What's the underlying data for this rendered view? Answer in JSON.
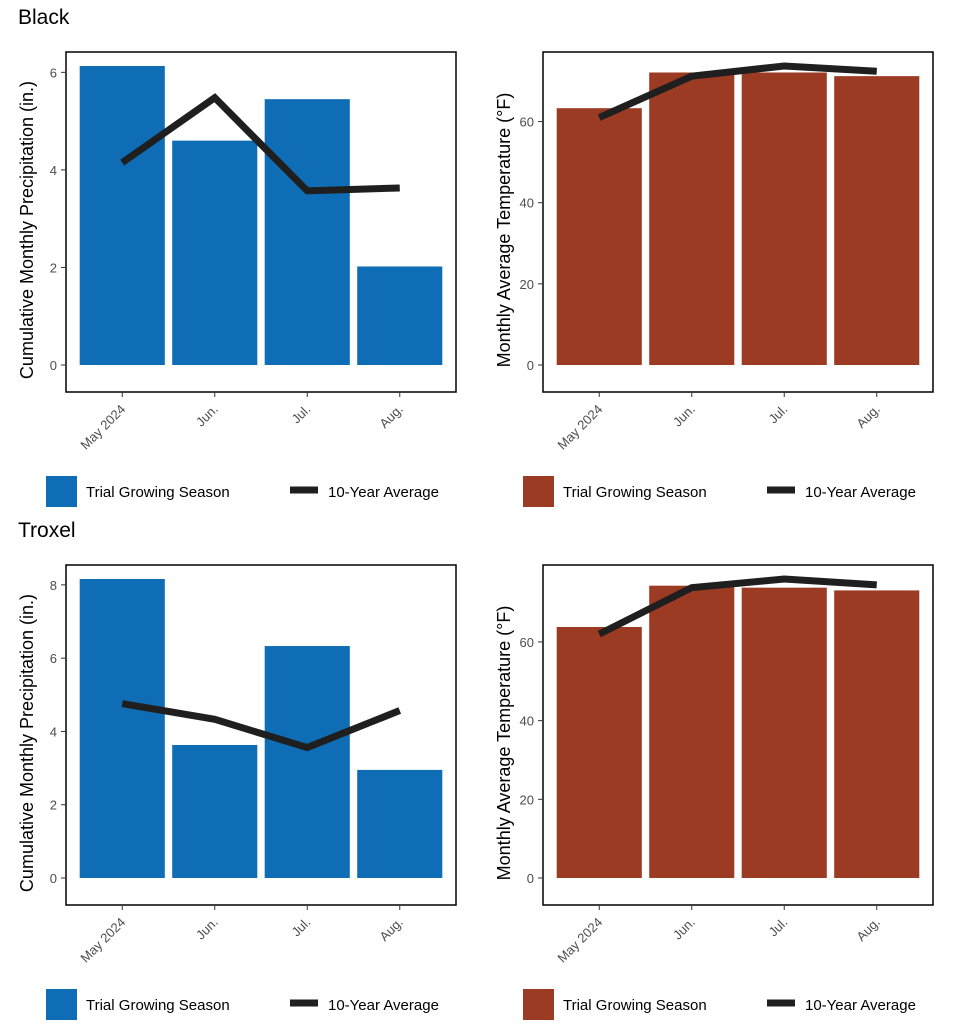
{
  "sections": [
    {
      "title": "Black"
    },
    {
      "title": "Troxel"
    }
  ],
  "colors": {
    "precip_bar": "#0F6DB5",
    "temp_bar": "#9B3B23",
    "avg_line": "#1f1f1f"
  },
  "legend": {
    "bar_label": "Trial Growing Season",
    "line_label": "10-Year Average"
  },
  "chart_data": [
    {
      "id": "black-precip",
      "type": "bar",
      "section": "Black",
      "categories": [
        "May 2024",
        "Jun.",
        "Jul.",
        "Aug."
      ],
      "series": [
        {
          "name": "Trial Growing Season",
          "type": "bar",
          "values": [
            6.13,
            4.6,
            5.45,
            2.02
          ]
        },
        {
          "name": "10-Year Average",
          "type": "line",
          "values": [
            4.15,
            5.48,
            3.57,
            3.63
          ]
        }
      ],
      "ylabel": "Cumulative Monthly Precipitation (in.)",
      "ylim": [
        0,
        6.13
      ],
      "yticks": [
        0,
        2,
        4,
        6
      ],
      "grid": false,
      "legend_position": "bottom"
    },
    {
      "id": "black-temp",
      "type": "bar",
      "section": "Black",
      "categories": [
        "May 2024",
        "Jun.",
        "Jul.",
        "Aug."
      ],
      "series": [
        {
          "name": "Trial Growing Season",
          "type": "bar",
          "values": [
            63.3,
            72.1,
            72.1,
            71.2
          ]
        },
        {
          "name": "10-Year Average",
          "type": "line",
          "values": [
            61.0,
            71.2,
            73.7,
            72.4
          ]
        }
      ],
      "ylabel": "Monthly Average Temperature  (°F)",
      "ylim": [
        0,
        73.7
      ],
      "yticks": [
        0,
        20,
        40,
        60
      ],
      "grid": false,
      "legend_position": "bottom"
    },
    {
      "id": "troxel-precip",
      "type": "bar",
      "section": "Troxel",
      "categories": [
        "May 2024",
        "Jun.",
        "Jul.",
        "Aug."
      ],
      "series": [
        {
          "name": "Trial Growing Season",
          "type": "bar",
          "values": [
            8.16,
            3.63,
            6.33,
            2.95
          ]
        },
        {
          "name": "10-Year Average",
          "type": "line",
          "values": [
            4.76,
            4.33,
            3.56,
            4.57
          ]
        }
      ],
      "ylabel": "Cumulative Monthly Precipitation (in.)",
      "ylim": [
        0,
        8.16
      ],
      "yticks": [
        0,
        2,
        4,
        6,
        8
      ],
      "grid": false,
      "legend_position": "bottom"
    },
    {
      "id": "troxel-temp",
      "type": "bar",
      "section": "Troxel",
      "categories": [
        "May 2024",
        "Jun.",
        "Jul.",
        "Aug."
      ],
      "series": [
        {
          "name": "Trial Growing Season",
          "type": "bar",
          "values": [
            63.8,
            74.3,
            73.8,
            73.1
          ]
        },
        {
          "name": "10-Year Average",
          "type": "line",
          "values": [
            62.0,
            73.8,
            76.0,
            74.5
          ]
        }
      ],
      "ylabel": "Monthly Average Temperature  (°F)",
      "ylim": [
        0,
        76.0
      ],
      "yticks": [
        0,
        20,
        40,
        60
      ],
      "grid": false,
      "legend_position": "bottom"
    }
  ]
}
